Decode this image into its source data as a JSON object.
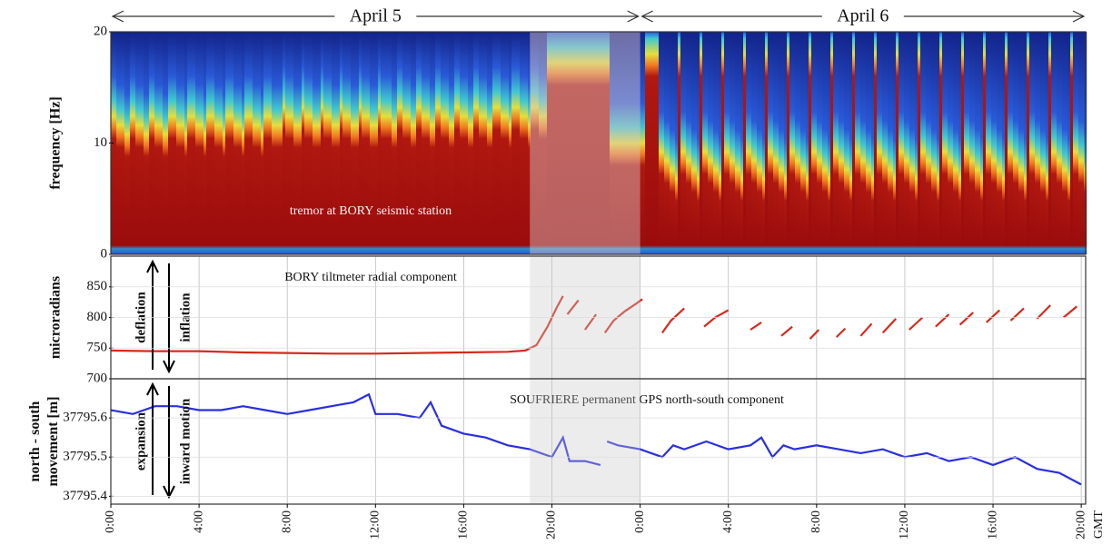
{
  "chart_data": [
    {
      "type": "spectrogram",
      "ylabel": "frequency [Hz]",
      "annotation": "tremor at BORY seismic station",
      "ylim": [
        0,
        20
      ],
      "yticks": [
        0,
        10,
        20
      ],
      "xlim": [
        0,
        44.2
      ],
      "shaded_xrange": [
        19,
        24
      ],
      "periods": [
        {
          "label": "April 5",
          "from": 0,
          "to": 24
        },
        {
          "label": "April 6",
          "from": 24,
          "to": 44.2
        }
      ]
    },
    {
      "type": "line",
      "ylabel": "microradians",
      "annotation": "BORY tiltmeter radial component",
      "arrow_labels": [
        "deflation",
        "inflation"
      ],
      "color": "#d42a1e",
      "ylim": [
        700,
        900
      ],
      "yticks": [
        700,
        750,
        800,
        850
      ],
      "xlim": [
        0,
        44.2
      ],
      "shaded_xrange": [
        19,
        24
      ],
      "x": [
        0,
        2,
        4,
        6,
        8,
        10,
        12,
        14,
        16,
        18,
        18.8,
        19.3,
        19.8,
        20.2,
        20.5,
        20.6,
        20.7,
        21.2,
        21.3,
        21.5,
        22.0,
        22.1,
        22.4,
        22.8,
        23.3,
        23.8,
        24.1,
        24.2,
        25.0,
        25.4,
        26.0,
        26.1,
        26.9,
        27.4,
        28.0,
        28.1,
        29.0,
        29.5,
        29.6,
        30.4,
        30.9,
        31.0,
        31.7,
        32.1,
        32.2,
        32.9,
        33.3,
        33.4,
        34.0,
        34.5,
        34.6,
        35.0,
        35.6,
        35.7,
        36.2,
        36.8,
        36.9,
        37.4,
        38.0,
        38.1,
        38.5,
        39.1,
        39.2,
        39.7,
        40.3,
        40.4,
        40.8,
        41.4,
        41.5,
        42.0,
        42.6,
        42.7,
        43.2,
        43.8
      ],
      "values": [
        746,
        745,
        745,
        743,
        742,
        741,
        741,
        742,
        743,
        744,
        746,
        755,
        785,
        815,
        835,
        null,
        805,
        828,
        null,
        780,
        805,
        null,
        775,
        795,
        810,
        822,
        830,
        null,
        775,
        795,
        815,
        null,
        785,
        800,
        812,
        null,
        780,
        792,
        null,
        770,
        785,
        null,
        765,
        780,
        null,
        768,
        782,
        null,
        770,
        790,
        null,
        775,
        798,
        null,
        780,
        800,
        null,
        785,
        805,
        null,
        788,
        808,
        null,
        792,
        812,
        null,
        795,
        815,
        null,
        798,
        820,
        null,
        800,
        818
      ]
    },
    {
      "type": "line",
      "ylabel": "north - south movement [m]",
      "annotation": "SOUFRIERE permanent GPS north-south component",
      "arrow_labels": [
        "expansion",
        "inward motion"
      ],
      "color": "#2a2ee0",
      "ylim": [
        37795.38,
        37795.7
      ],
      "yticks": [
        37795.4,
        37795.5,
        37795.6
      ],
      "xlim": [
        0,
        44.2
      ],
      "shaded_xrange": [
        19,
        24
      ],
      "xunit": "GMT",
      "xticks": [
        {
          "value": 0,
          "label": "0:00"
        },
        {
          "value": 4,
          "label": "4:00"
        },
        {
          "value": 8,
          "label": "8:00"
        },
        {
          "value": 12,
          "label": "12:00"
        },
        {
          "value": 16,
          "label": "16:00"
        },
        {
          "value": 20,
          "label": "20:00"
        },
        {
          "value": 24,
          "label": "0:00"
        },
        {
          "value": 28,
          "label": "4:00"
        },
        {
          "value": 32,
          "label": "8:00"
        },
        {
          "value": 36,
          "label": "12:00"
        },
        {
          "value": 40,
          "label": "16:00"
        },
        {
          "value": 44,
          "label": "20:00"
        }
      ],
      "x": [
        0,
        1,
        2,
        3,
        4,
        5,
        6,
        7,
        8,
        9,
        10,
        11,
        11.7,
        12,
        13,
        14,
        14.5,
        15,
        16,
        17,
        18,
        19,
        20,
        20.5,
        20.8,
        21.5,
        22.2,
        22.3,
        22.5,
        23,
        24,
        25,
        25.5,
        26,
        27,
        28,
        29,
        29.5,
        30,
        30.5,
        31,
        32,
        33,
        34,
        35,
        36,
        37,
        38,
        39,
        40,
        41,
        42,
        43,
        44
      ],
      "values": [
        37795.62,
        37795.61,
        37795.63,
        37795.63,
        37795.62,
        37795.62,
        37795.63,
        37795.62,
        37795.61,
        37795.62,
        37795.63,
        37795.64,
        37795.66,
        37795.61,
        37795.61,
        37795.6,
        37795.64,
        37795.58,
        37795.56,
        37795.55,
        37795.53,
        37795.52,
        37795.5,
        37795.55,
        37795.49,
        37795.49,
        37795.48,
        null,
        37795.54,
        37795.53,
        37795.52,
        37795.5,
        37795.53,
        37795.52,
        37795.54,
        37795.52,
        37795.53,
        37795.55,
        37795.5,
        37795.53,
        37795.52,
        37795.53,
        37795.52,
        37795.51,
        37795.52,
        37795.5,
        37795.51,
        37795.49,
        37795.5,
        37795.48,
        37795.5,
        37795.47,
        37795.46,
        37795.43
      ]
    }
  ]
}
